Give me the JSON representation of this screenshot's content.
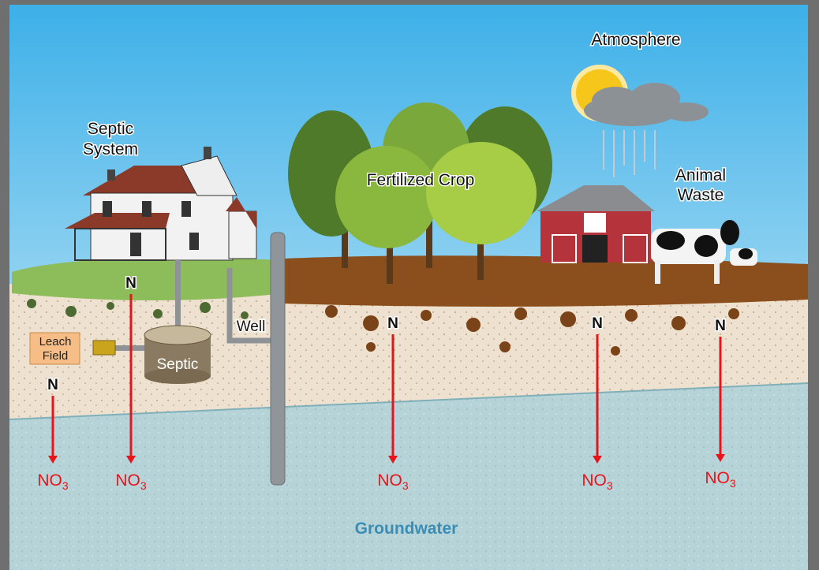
{
  "labels": {
    "atmosphere": "Atmosphere",
    "septic_system": [
      "Septic",
      "System"
    ],
    "fertilized_crop": "Fertilized Crop",
    "animal_waste": [
      "Animal",
      "Waste"
    ],
    "well": "Well",
    "leach_field": [
      "Leach",
      "Field"
    ],
    "septic": "Septic",
    "groundwater": "Groundwater"
  },
  "arrows": [
    {
      "from": "N",
      "to": {
        "base": "NO",
        "sub": "3"
      }
    },
    {
      "from": "N",
      "to": {
        "base": "NO",
        "sub": "3"
      }
    },
    {
      "from": "N",
      "to": {
        "base": "NO",
        "sub": "3"
      }
    },
    {
      "from": "N",
      "to": {
        "base": "NO",
        "sub": "3"
      }
    },
    {
      "from": "N",
      "to": {
        "base": "NO",
        "sub": "3"
      }
    }
  ]
}
